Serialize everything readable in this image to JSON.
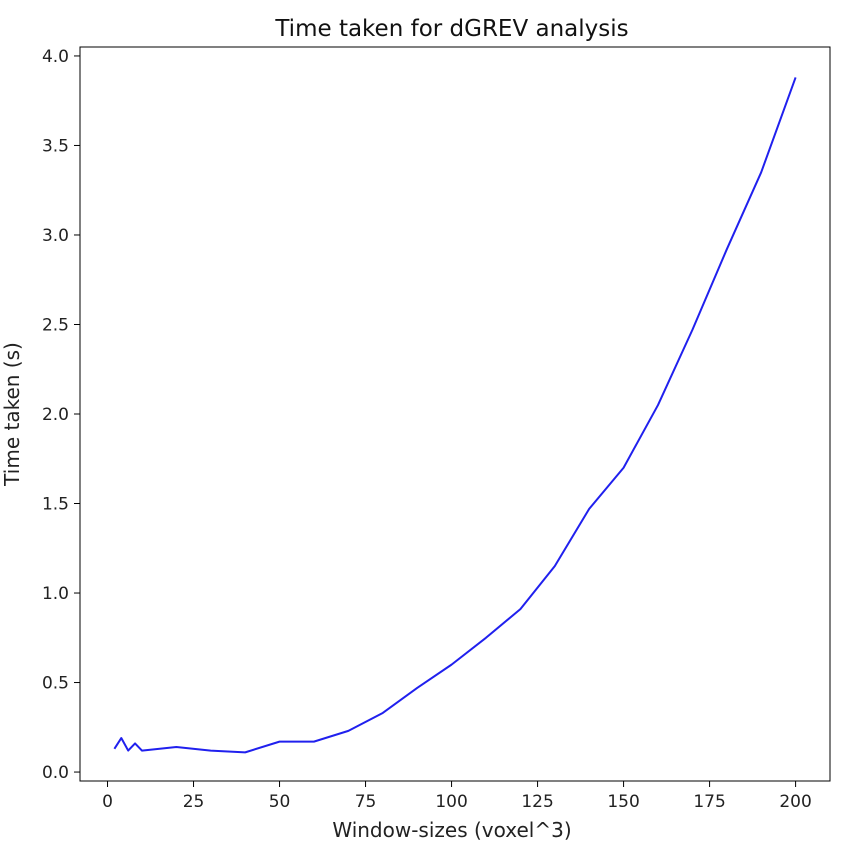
{
  "chart_data": {
    "type": "line",
    "title": "Time taken for dGREV analysis",
    "xlabel": "Window-sizes (voxel^3)",
    "ylabel": "Time taken (s)",
    "xlim": [
      -8,
      210
    ],
    "ylim": [
      -0.05,
      4.05
    ],
    "xticks": [
      0,
      25,
      50,
      75,
      100,
      125,
      150,
      175,
      200
    ],
    "xtick_labels": [
      "0",
      "25",
      "50",
      "75",
      "100",
      "125",
      "150",
      "175",
      "200"
    ],
    "yticks": [
      0.0,
      0.5,
      1.0,
      1.5,
      2.0,
      2.5,
      3.0,
      3.5,
      4.0
    ],
    "ytick_labels": [
      "0.0",
      "0.5",
      "1.0",
      "1.5",
      "2.0",
      "2.5",
      "3.0",
      "3.5",
      "4.0"
    ],
    "grid": false,
    "series": [
      {
        "color": "#2020ee",
        "x": [
          2,
          4,
          6,
          8,
          10,
          20,
          30,
          40,
          50,
          60,
          70,
          80,
          90,
          100,
          110,
          120,
          130,
          140,
          150,
          160,
          170,
          180,
          190,
          200
        ],
        "y": [
          0.13,
          0.19,
          0.12,
          0.16,
          0.12,
          0.14,
          0.12,
          0.11,
          0.17,
          0.17,
          0.23,
          0.33,
          0.47,
          0.6,
          0.75,
          0.91,
          1.15,
          1.47,
          1.7,
          2.05,
          2.47,
          2.92,
          3.35,
          3.88
        ]
      }
    ]
  }
}
